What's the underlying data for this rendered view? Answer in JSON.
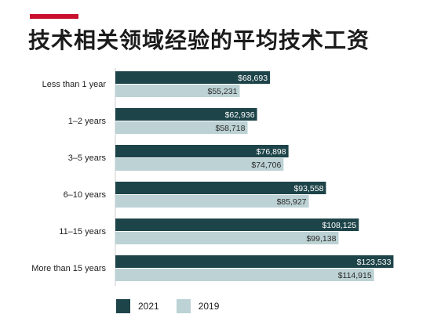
{
  "header": {
    "title": "技术相关领域经验的平均技术工资",
    "accent_color": "#c8102e"
  },
  "chart_data": {
    "type": "bar",
    "orientation": "horizontal",
    "title": "技术相关领域经验的平均技术工资",
    "categories": [
      "Less than 1 year",
      "1–2 years",
      "3–5 years",
      "6–10 years",
      "11–15 years",
      "More than 15 years"
    ],
    "series": [
      {
        "name": "2021",
        "color": "#1d4449",
        "values": [
          68693,
          62936,
          76898,
          93558,
          108125,
          123533
        ],
        "labels": [
          "$68,693",
          "$62,936",
          "$76,898",
          "$93,558",
          "$108,125",
          "$123,533"
        ]
      },
      {
        "name": "2019",
        "color": "#bcd2d4",
        "values": [
          55231,
          58718,
          74706,
          85927,
          99138,
          114915
        ],
        "labels": [
          "$55,231",
          "$58,718",
          "$74,706",
          "$85,927",
          "$99,138",
          "$114,915"
        ]
      }
    ],
    "xlim": [
      0,
      130000
    ],
    "grid": false,
    "legend_position": "bottom-left"
  }
}
